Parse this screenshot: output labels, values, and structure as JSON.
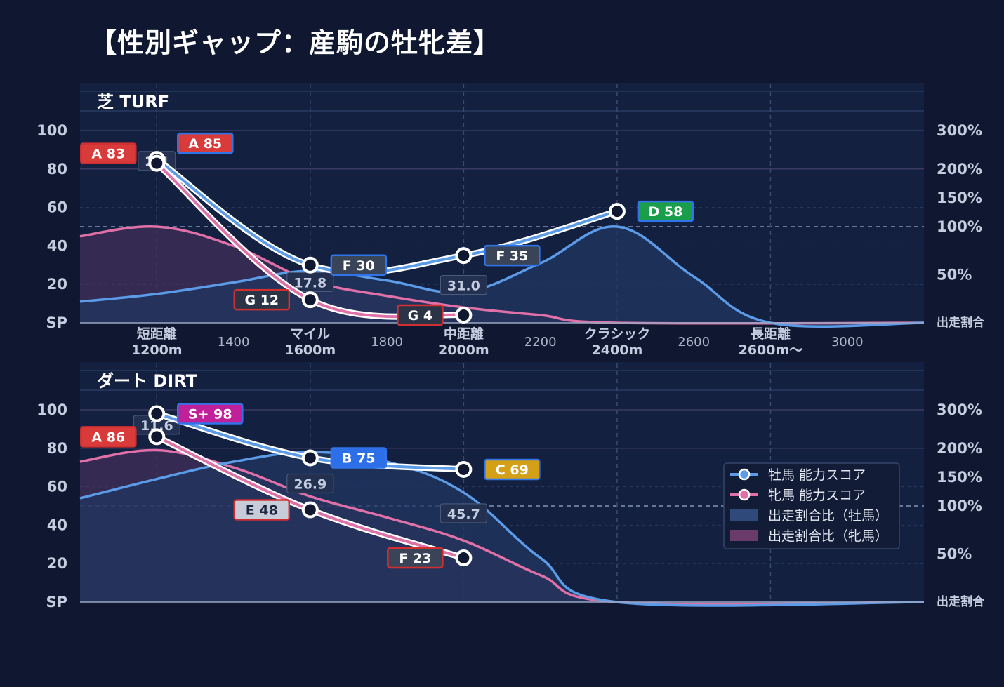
{
  "title": "【性別ギャップ：産駒の牡牝差】",
  "colors": {
    "background": "#0f1830",
    "panel": "#142040",
    "male_line": "#5b9be8",
    "female_line": "#e070a8",
    "male_area": "#1f3560",
    "female_area": "#503460",
    "grade_A": "#d93a3a",
    "grade_S": "#c0209a",
    "grade_B": "#2d6fe8",
    "grade_C": "#d4a017",
    "grade_D": "#1a9e4a",
    "grade_E": "#c8ccd8",
    "grade_F": "#3a4458",
    "grade_G": "#2a3446"
  },
  "legend": {
    "male_score": "牡馬 能力スコア",
    "female_score": "牝馬 能力スコア",
    "male_ratio": "出走割合比（牡馬）",
    "female_ratio": "出走割合比（牝馬）"
  },
  "chart_data": [
    {
      "type": "line",
      "panel_label": "芝 TURF",
      "x_categories": [
        {
          "value": 1200,
          "line1": "短距離",
          "line2": "1200m"
        },
        {
          "value": 1600,
          "line1": "マイル",
          "line2": "1600m"
        },
        {
          "value": 2000,
          "line1": "中距離",
          "line2": "2000m"
        },
        {
          "value": 2400,
          "line1": "クラシック",
          "line2": "2400m"
        },
        {
          "value": 2800,
          "line1": "長距離",
          "line2": "2600m〜"
        }
      ],
      "x_minor_ticks": [
        "1400",
        "1800",
        "2200",
        "2600",
        "3000"
      ],
      "xlim": [
        1000,
        3200
      ],
      "y_ticks": [
        "SP",
        "20",
        "40",
        "60",
        "80",
        "100"
      ],
      "y_right_ticks": [
        "出走割合",
        "50%",
        "100%",
        "150%",
        "200%",
        "300%"
      ],
      "ylim": [
        0,
        100
      ],
      "series": [
        {
          "name": "牡馬 能力スコア",
          "x": [
            1200,
            1600,
            2000,
            2400
          ],
          "values": [
            85,
            30,
            35,
            58
          ],
          "badges": [
            "A 85",
            "F 30",
            "F 35",
            "D 58"
          ],
          "grades": [
            "A",
            "F",
            "F",
            "D"
          ]
        },
        {
          "name": "牝馬 能力スコア",
          "x": [
            1200,
            1600,
            2000
          ],
          "values": [
            83,
            12,
            4
          ],
          "badges": [
            "A 83",
            "G 12",
            "G 4"
          ],
          "grades": [
            "A",
            "G",
            "G"
          ]
        }
      ],
      "gap_labels": [
        {
          "x": 1200,
          "text": "2.4"
        },
        {
          "x": 1600,
          "text": "17.8"
        },
        {
          "x": 2000,
          "text": "31.0"
        }
      ],
      "ratio_male": [
        [
          1000,
          11
        ],
        [
          1200,
          15
        ],
        [
          1400,
          21
        ],
        [
          1600,
          27
        ],
        [
          1800,
          22
        ],
        [
          2000,
          16
        ],
        [
          2200,
          31
        ],
        [
          2400,
          50
        ],
        [
          2600,
          24
        ],
        [
          2800,
          0
        ],
        [
          3200,
          0
        ]
      ],
      "ratio_female": [
        [
          1000,
          45
        ],
        [
          1200,
          50
        ],
        [
          1400,
          40
        ],
        [
          1600,
          22
        ],
        [
          1800,
          14
        ],
        [
          2000,
          8
        ],
        [
          2200,
          4
        ],
        [
          2400,
          0
        ],
        [
          3200,
          0
        ]
      ]
    },
    {
      "type": "line",
      "panel_label": "ダート DIRT",
      "x_categories": [
        {
          "value": 1200,
          "line1": "",
          "line2": ""
        },
        {
          "value": 1600,
          "line1": "",
          "line2": ""
        },
        {
          "value": 2000,
          "line1": "",
          "line2": ""
        },
        {
          "value": 2400,
          "line1": "",
          "line2": ""
        },
        {
          "value": 2800,
          "line1": "",
          "line2": ""
        }
      ],
      "x_minor_ticks": [],
      "xlim": [
        1000,
        3200
      ],
      "y_ticks": [
        "SP",
        "20",
        "40",
        "60",
        "80",
        "100"
      ],
      "y_right_ticks": [
        "出走割合",
        "50%",
        "100%",
        "150%",
        "200%",
        "300%"
      ],
      "ylim": [
        0,
        100
      ],
      "series": [
        {
          "name": "牡馬 能力スコア",
          "x": [
            1200,
            1600,
            2000
          ],
          "values": [
            98,
            75,
            69
          ],
          "badges": [
            "S+ 98",
            "B 75",
            "C 69"
          ],
          "grades": [
            "S",
            "B",
            "C"
          ]
        },
        {
          "name": "牝馬 能力スコア",
          "x": [
            1200,
            1600,
            2000
          ],
          "values": [
            86,
            48,
            23
          ],
          "badges": [
            "A 86",
            "E 48",
            "F 23"
          ],
          "grades": [
            "A",
            "E",
            "F"
          ]
        }
      ],
      "gap_labels": [
        {
          "x": 1200,
          "text": "11.6"
        },
        {
          "x": 1600,
          "text": "26.9"
        },
        {
          "x": 2000,
          "text": "45.7"
        }
      ],
      "ratio_male": [
        [
          1000,
          54
        ],
        [
          1200,
          64
        ],
        [
          1400,
          73
        ],
        [
          1600,
          78
        ],
        [
          1800,
          73
        ],
        [
          2000,
          57
        ],
        [
          2200,
          23
        ],
        [
          2400,
          0
        ],
        [
          3200,
          0
        ]
      ],
      "ratio_female": [
        [
          1000,
          73
        ],
        [
          1200,
          79
        ],
        [
          1400,
          70
        ],
        [
          1600,
          55
        ],
        [
          1800,
          44
        ],
        [
          2000,
          32
        ],
        [
          2200,
          14
        ],
        [
          2400,
          0
        ],
        [
          3200,
          0
        ]
      ]
    }
  ]
}
